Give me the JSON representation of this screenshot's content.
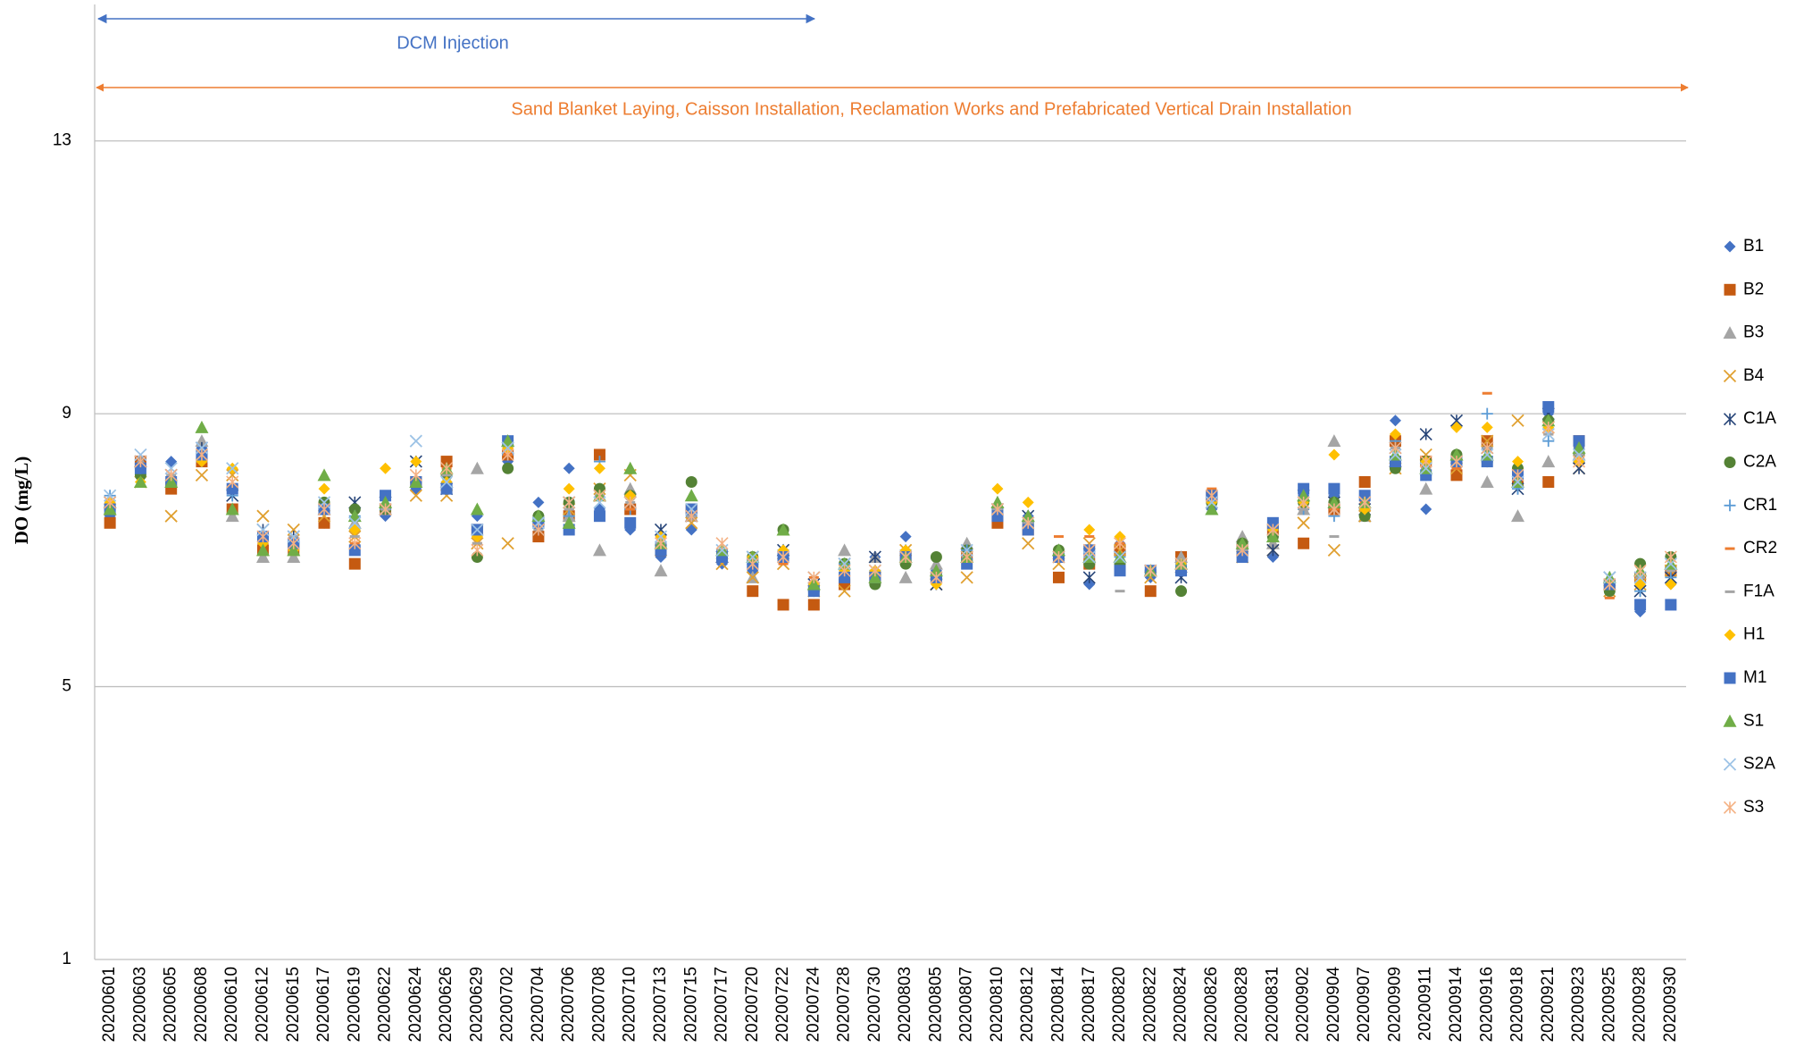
{
  "chart_data": {
    "type": "scatter",
    "y_label": "DO (mg/L)",
    "annotations": [
      "DCM Injection",
      "Sand Blanket  Laying, Caisson Installation, Reclamation Works and Prefabricated Vertical Drain Installation"
    ],
    "categories": [
      "20200601",
      "20200603",
      "20200605",
      "20200608",
      "20200610",
      "20200612",
      "20200615",
      "20200617",
      "20200619",
      "20200622",
      "20200624",
      "20200626",
      "20200629",
      "20200702",
      "20200704",
      "20200706",
      "20200708",
      "20200710",
      "20200713",
      "20200715",
      "20200717",
      "20200720",
      "20200722",
      "20200724",
      "20200728",
      "20200730",
      "20200803",
      "20200805",
      "20200807",
      "20200810",
      "20200812",
      "20200814",
      "20200817",
      "20200820",
      "20200822",
      "20200824",
      "20200826",
      "20200828",
      "20200831",
      "20200902",
      "20200904",
      "20200907",
      "20200909",
      "20200911",
      "20200914",
      "20200916",
      "20200918",
      "20200921",
      "20200923",
      "20200925",
      "20200928",
      "20200930"
    ],
    "ylim": [
      1,
      15
    ],
    "yticks": [
      1,
      5,
      9,
      13
    ],
    "grid": true,
    "legend": "right",
    "series": [
      {
        "name": "B1",
        "color": "#4472c4",
        "marker": "diamond",
        "values": [
          7.5,
          8.2,
          8.3,
          8.5,
          7.9,
          7.1,
          7.0,
          7.4,
          7.3,
          7.5,
          7.9,
          8.0,
          7.5,
          8.3,
          7.7,
          8.2,
          7.6,
          7.3,
          6.9,
          7.3,
          6.8,
          6.7,
          7.0,
          6.4,
          6.7,
          6.9,
          7.2,
          6.7,
          6.9,
          7.6,
          7.5,
          7.0,
          6.5,
          7.1,
          6.6,
          6.7,
          7.6,
          6.9,
          6.9,
          7.8,
          7.8,
          7.6,
          8.9,
          7.6,
          8.3,
          8.5,
          8.0,
          9.0,
          8.5,
          6.5,
          6.1,
          6.5
        ]
      },
      {
        "name": "B2",
        "color": "#c55a11",
        "marker": "square",
        "values": [
          7.4,
          8.3,
          7.9,
          8.3,
          7.6,
          7.0,
          7.0,
          7.4,
          6.8,
          7.6,
          8.0,
          8.3,
          7.3,
          8.4,
          7.2,
          7.5,
          8.4,
          7.6,
          7.0,
          7.6,
          6.9,
          6.4,
          6.2,
          6.2,
          6.5,
          6.6,
          6.9,
          6.6,
          6.9,
          7.4,
          7.3,
          6.6,
          6.8,
          7.0,
          6.4,
          6.9,
          7.8,
          7.0,
          7.3,
          7.1,
          7.6,
          8.0,
          8.6,
          8.3,
          8.1,
          8.6,
          8.0,
          8.0,
          8.6,
          6.5,
          6.6,
          6.7
        ]
      },
      {
        "name": "B3",
        "color": "#a5a5a5",
        "marker": "triangle",
        "values": [
          7.7,
          8.3,
          8.0,
          8.6,
          7.5,
          6.9,
          6.9,
          7.6,
          7.4,
          7.6,
          8.0,
          8.0,
          8.2,
          8.6,
          7.5,
          7.5,
          7.0,
          7.9,
          6.7,
          7.5,
          6.9,
          6.6,
          7.0,
          6.5,
          7.0,
          6.9,
          6.6,
          6.8,
          7.1,
          7.7,
          7.5,
          7.0,
          6.9,
          6.9,
          6.7,
          6.9,
          7.6,
          7.2,
          7.1,
          7.6,
          8.6,
          7.5,
          8.3,
          7.9,
          8.4,
          8.0,
          7.5,
          8.3,
          8.4,
          6.5,
          6.7,
          6.8
        ]
      },
      {
        "name": "B4",
        "color": "#e0a030",
        "marker": "x",
        "values": [
          7.6,
          8.0,
          7.5,
          8.1,
          8.1,
          7.5,
          7.3,
          7.5,
          7.2,
          7.6,
          7.8,
          7.8,
          7.1,
          7.1,
          7.3,
          7.6,
          7.9,
          8.1,
          7.0,
          7.4,
          6.8,
          6.6,
          6.8,
          6.4,
          6.4,
          6.6,
          7.0,
          6.5,
          6.6,
          7.6,
          7.1,
          6.8,
          7.1,
          7.0,
          6.6,
          6.8,
          7.7,
          6.9,
          7.0,
          7.4,
          7.0,
          7.5,
          8.2,
          8.4,
          8.2,
          8.6,
          8.9,
          8.8,
          8.2,
          6.4,
          6.5,
          6.7
        ]
      },
      {
        "name": "C1A",
        "color": "#264478",
        "marker": "star",
        "values": [
          7.7,
          8.3,
          8.1,
          8.5,
          7.8,
          7.3,
          7.2,
          7.6,
          7.7,
          7.7,
          8.3,
          7.9,
          7.3,
          8.5,
          7.3,
          7.7,
          7.8,
          7.7,
          7.3,
          7.5,
          6.9,
          6.9,
          7.0,
          6.5,
          6.8,
          6.9,
          6.9,
          6.5,
          6.9,
          7.6,
          7.5,
          6.9,
          6.6,
          6.9,
          6.7,
          6.6,
          7.7,
          7.0,
          7.0,
          7.8,
          7.7,
          7.6,
          8.5,
          8.7,
          8.9,
          8.5,
          7.9,
          9.0,
          8.2,
          6.6,
          6.4,
          6.6
        ]
      },
      {
        "name": "C2A",
        "color": "#548235",
        "marker": "circle",
        "values": [
          7.6,
          8.1,
          8.0,
          8.4,
          7.9,
          7.2,
          7.1,
          7.7,
          7.6,
          7.6,
          8.0,
          8.1,
          6.9,
          8.2,
          7.5,
          7.7,
          7.9,
          7.8,
          7.0,
          8.0,
          6.9,
          6.9,
          7.3,
          6.4,
          6.8,
          6.5,
          6.8,
          6.9,
          7.0,
          7.6,
          7.4,
          7.0,
          6.8,
          6.8,
          6.7,
          6.4,
          7.7,
          7.1,
          7.2,
          7.7,
          7.7,
          7.5,
          8.2,
          8.3,
          8.4,
          8.3,
          8.2,
          8.9,
          8.4,
          6.4,
          6.8,
          6.9
        ]
      },
      {
        "name": "CR1",
        "color": "#5b9bd5",
        "marker": "plus",
        "values": [
          7.8,
          8.2,
          8.0,
          8.3,
          7.8,
          7.2,
          7.1,
          7.6,
          7.5,
          7.6,
          8.0,
          7.9,
          7.3,
          8.4,
          7.4,
          7.5,
          8.3,
          7.6,
          7.1,
          7.5,
          7.0,
          6.8,
          7.0,
          6.5,
          6.8,
          6.7,
          7.0,
          6.6,
          7.0,
          7.6,
          7.4,
          6.9,
          6.9,
          6.9,
          6.7,
          6.8,
          7.7,
          7.0,
          7.3,
          7.6,
          7.5,
          7.6,
          8.6,
          8.1,
          8.3,
          9.0,
          7.9,
          8.6,
          8.3,
          6.5,
          6.4,
          6.6
        ]
      },
      {
        "name": "CR2",
        "color": "#ed7d31",
        "marker": "dash",
        "values": [
          7.7,
          8.2,
          8.0,
          8.3,
          7.9,
          7.2,
          7.1,
          7.6,
          7.1,
          7.6,
          8.0,
          8.2,
          7.1,
          8.4,
          7.4,
          7.6,
          7.8,
          7.6,
          7.1,
          7.5,
          7.0,
          6.9,
          6.8,
          6.6,
          6.6,
          6.6,
          6.9,
          6.6,
          6.9,
          7.6,
          7.4,
          7.2,
          7.2,
          7.1,
          6.7,
          6.8,
          7.9,
          7.0,
          7.3,
          7.6,
          7.6,
          7.7,
          8.5,
          8.2,
          8.2,
          9.3,
          8.1,
          8.7,
          8.3,
          6.3,
          6.5,
          6.7
        ]
      },
      {
        "name": "F1A",
        "color": "#a5a5a5",
        "marker": "dash",
        "values": [
          7.7,
          8.2,
          8.1,
          8.4,
          7.9,
          7.2,
          7.2,
          7.6,
          7.2,
          7.6,
          8.0,
          8.1,
          7.1,
          8.5,
          7.3,
          7.6,
          7.8,
          7.7,
          7.1,
          7.5,
          7.0,
          6.9,
          6.9,
          6.5,
          6.6,
          6.7,
          6.9,
          6.6,
          6.9,
          7.6,
          7.4,
          6.9,
          6.9,
          6.4,
          6.7,
          6.8,
          7.8,
          7.0,
          7.3,
          7.6,
          7.2,
          7.6,
          8.5,
          8.2,
          8.3,
          8.5,
          8.1,
          8.7,
          8.4,
          6.5,
          6.6,
          6.7
        ]
      },
      {
        "name": "H1",
        "color": "#ffc000",
        "marker": "diamond",
        "values": [
          7.7,
          8.0,
          8.0,
          8.3,
          8.2,
          7.1,
          7.0,
          7.9,
          7.3,
          8.2,
          8.3,
          8.0,
          7.2,
          8.5,
          7.4,
          7.9,
          8.2,
          7.8,
          7.2,
          7.6,
          6.9,
          6.9,
          7.0,
          6.5,
          6.7,
          6.7,
          7.0,
          6.5,
          6.8,
          7.9,
          7.7,
          6.9,
          7.3,
          7.2,
          6.7,
          6.8,
          7.7,
          6.9,
          7.3,
          7.7,
          8.4,
          7.6,
          8.7,
          8.3,
          8.8,
          8.8,
          8.3,
          8.8,
          8.3,
          6.5,
          6.5,
          6.5
        ]
      },
      {
        "name": "M1",
        "color": "#4472c4",
        "marker": "square",
        "values": [
          7.6,
          8.2,
          8.0,
          8.4,
          7.9,
          7.2,
          7.1,
          7.6,
          7.0,
          7.8,
          8.0,
          7.9,
          7.3,
          8.6,
          7.4,
          7.3,
          7.5,
          7.4,
          7.0,
          7.6,
          6.9,
          6.8,
          6.9,
          6.4,
          6.6,
          6.6,
          6.9,
          6.6,
          6.8,
          7.5,
          7.3,
          6.9,
          7.0,
          6.7,
          6.7,
          6.7,
          7.8,
          6.9,
          7.4,
          7.9,
          7.9,
          7.8,
          8.3,
          8.1,
          8.3,
          8.3,
          8.1,
          9.1,
          8.6,
          6.5,
          6.2,
          6.2
        ]
      },
      {
        "name": "S1",
        "color": "#70ad47",
        "marker": "triangle",
        "values": [
          7.6,
          8.0,
          8.0,
          8.8,
          7.6,
          7.0,
          7.0,
          8.1,
          7.5,
          7.7,
          8.0,
          8.2,
          7.6,
          8.6,
          7.5,
          7.4,
          7.8,
          8.2,
          7.1,
          7.8,
          7.0,
          6.9,
          7.3,
          6.5,
          6.8,
          6.6,
          6.9,
          6.7,
          6.9,
          7.7,
          7.5,
          7.0,
          6.9,
          6.9,
          6.7,
          6.8,
          7.6,
          7.1,
          7.2,
          7.8,
          7.7,
          7.7,
          8.4,
          8.2,
          8.4,
          8.4,
          8.0,
          8.9,
          8.5,
          6.6,
          6.7,
          6.8
        ]
      },
      {
        "name": "S2A",
        "color": "#9dc3e6",
        "marker": "x",
        "values": [
          7.8,
          8.4,
          8.2,
          8.5,
          8.2,
          7.3,
          7.2,
          7.7,
          7.4,
          7.6,
          8.6,
          8.0,
          7.3,
          8.5,
          7.4,
          7.7,
          7.7,
          7.7,
          7.2,
          7.6,
          7.0,
          6.9,
          6.9,
          6.6,
          6.8,
          6.7,
          6.9,
          6.6,
          7.0,
          7.6,
          7.4,
          6.9,
          6.9,
          6.9,
          6.7,
          6.8,
          7.7,
          7.0,
          7.3,
          7.7,
          7.6,
          7.7,
          8.4,
          8.2,
          8.3,
          8.4,
          8.0,
          8.7,
          8.4,
          6.6,
          6.6,
          6.8
        ]
      },
      {
        "name": "S3",
        "color": "#f4b183",
        "marker": "star",
        "values": [
          7.7,
          8.3,
          8.1,
          8.4,
          8.0,
          7.2,
          7.1,
          7.6,
          7.1,
          7.6,
          8.1,
          8.2,
          7.0,
          8.4,
          7.3,
          7.7,
          7.8,
          7.7,
          7.1,
          7.5,
          7.1,
          6.8,
          6.9,
          6.6,
          6.7,
          6.7,
          6.9,
          6.6,
          6.9,
          7.6,
          7.4,
          6.9,
          7.0,
          7.1,
          6.7,
          6.8,
          7.8,
          7.0,
          7.3,
          7.7,
          7.6,
          7.7,
          8.5,
          8.3,
          8.3,
          8.5,
          8.1,
          8.8,
          8.3,
          6.5,
          6.7,
          6.9
        ]
      }
    ]
  }
}
